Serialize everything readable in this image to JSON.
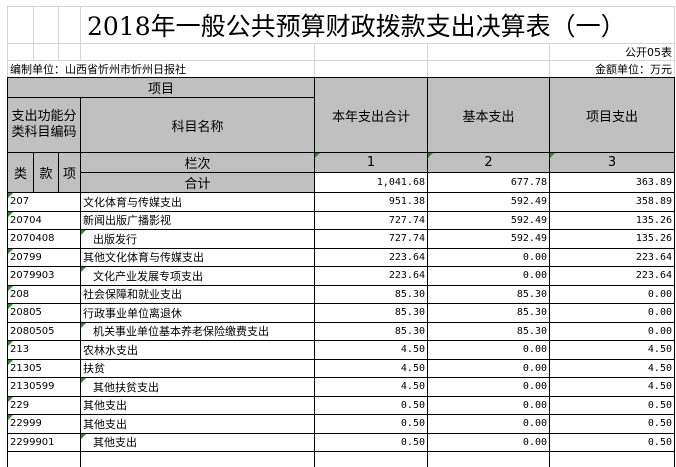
{
  "title": "2018年一般公共预算财政拨款支出决算表（一）",
  "form_no": "公开05表",
  "unit_label": "编制单位：山西省忻州市忻州日报社",
  "amount_unit": "金额单位：万元",
  "header": {
    "item": "项目",
    "func_code": "支出功能分类科目编码",
    "subject_name": "科目名称",
    "total": "本年支出合计",
    "basic": "基本支出",
    "project": "项目支出",
    "lei": "类",
    "kuan": "款",
    "xiang": "项",
    "col_order": "栏次",
    "col1": "1",
    "col2": "2",
    "col3": "3",
    "sum_label": "合计"
  },
  "totals": {
    "total": "1,041.68",
    "basic": "677.78",
    "project": "363.89"
  },
  "rows": [
    {
      "code": "207",
      "name": "文化体育与传媒支出",
      "total": "951.38",
      "basic": "592.49",
      "project": "358.89",
      "indent": false
    },
    {
      "code": "20704",
      "name": "新闻出版广播影视",
      "total": "727.74",
      "basic": "592.49",
      "project": "135.26",
      "indent": false
    },
    {
      "code": "2070408",
      "name": "出版发行",
      "total": "727.74",
      "basic": "592.49",
      "project": "135.26",
      "indent": true
    },
    {
      "code": "20799",
      "name": "其他文化体育与传媒支出",
      "total": "223.64",
      "basic": "0.00",
      "project": "223.64",
      "indent": false
    },
    {
      "code": "2079903",
      "name": "文化产业发展专项支出",
      "total": "223.64",
      "basic": "0.00",
      "project": "223.64",
      "indent": true
    },
    {
      "code": "208",
      "name": "社会保障和就业支出",
      "total": "85.30",
      "basic": "85.30",
      "project": "0.00",
      "indent": false
    },
    {
      "code": "20805",
      "name": "行政事业单位离退休",
      "total": "85.30",
      "basic": "85.30",
      "project": "0.00",
      "indent": false
    },
    {
      "code": "2080505",
      "name": "机关事业单位基本养老保险缴费支出",
      "total": "85.30",
      "basic": "85.30",
      "project": "0.00",
      "indent": true
    },
    {
      "code": "213",
      "name": "农林水支出",
      "total": "4.50",
      "basic": "0.00",
      "project": "4.50",
      "indent": false
    },
    {
      "code": "21305",
      "name": "扶贫",
      "total": "4.50",
      "basic": "0.00",
      "project": "4.50",
      "indent": false
    },
    {
      "code": "2130599",
      "name": "其他扶贫支出",
      "total": "4.50",
      "basic": "0.00",
      "project": "4.50",
      "indent": true
    },
    {
      "code": "229",
      "name": "其他支出",
      "total": "0.50",
      "basic": "0.00",
      "project": "0.50",
      "indent": false
    },
    {
      "code": "22999",
      "name": "其他支出",
      "total": "0.50",
      "basic": "0.00",
      "project": "0.50",
      "indent": false
    },
    {
      "code": "2299901",
      "name": "其他支出",
      "total": "0.50",
      "basic": "0.00",
      "project": "0.50",
      "indent": true
    }
  ]
}
